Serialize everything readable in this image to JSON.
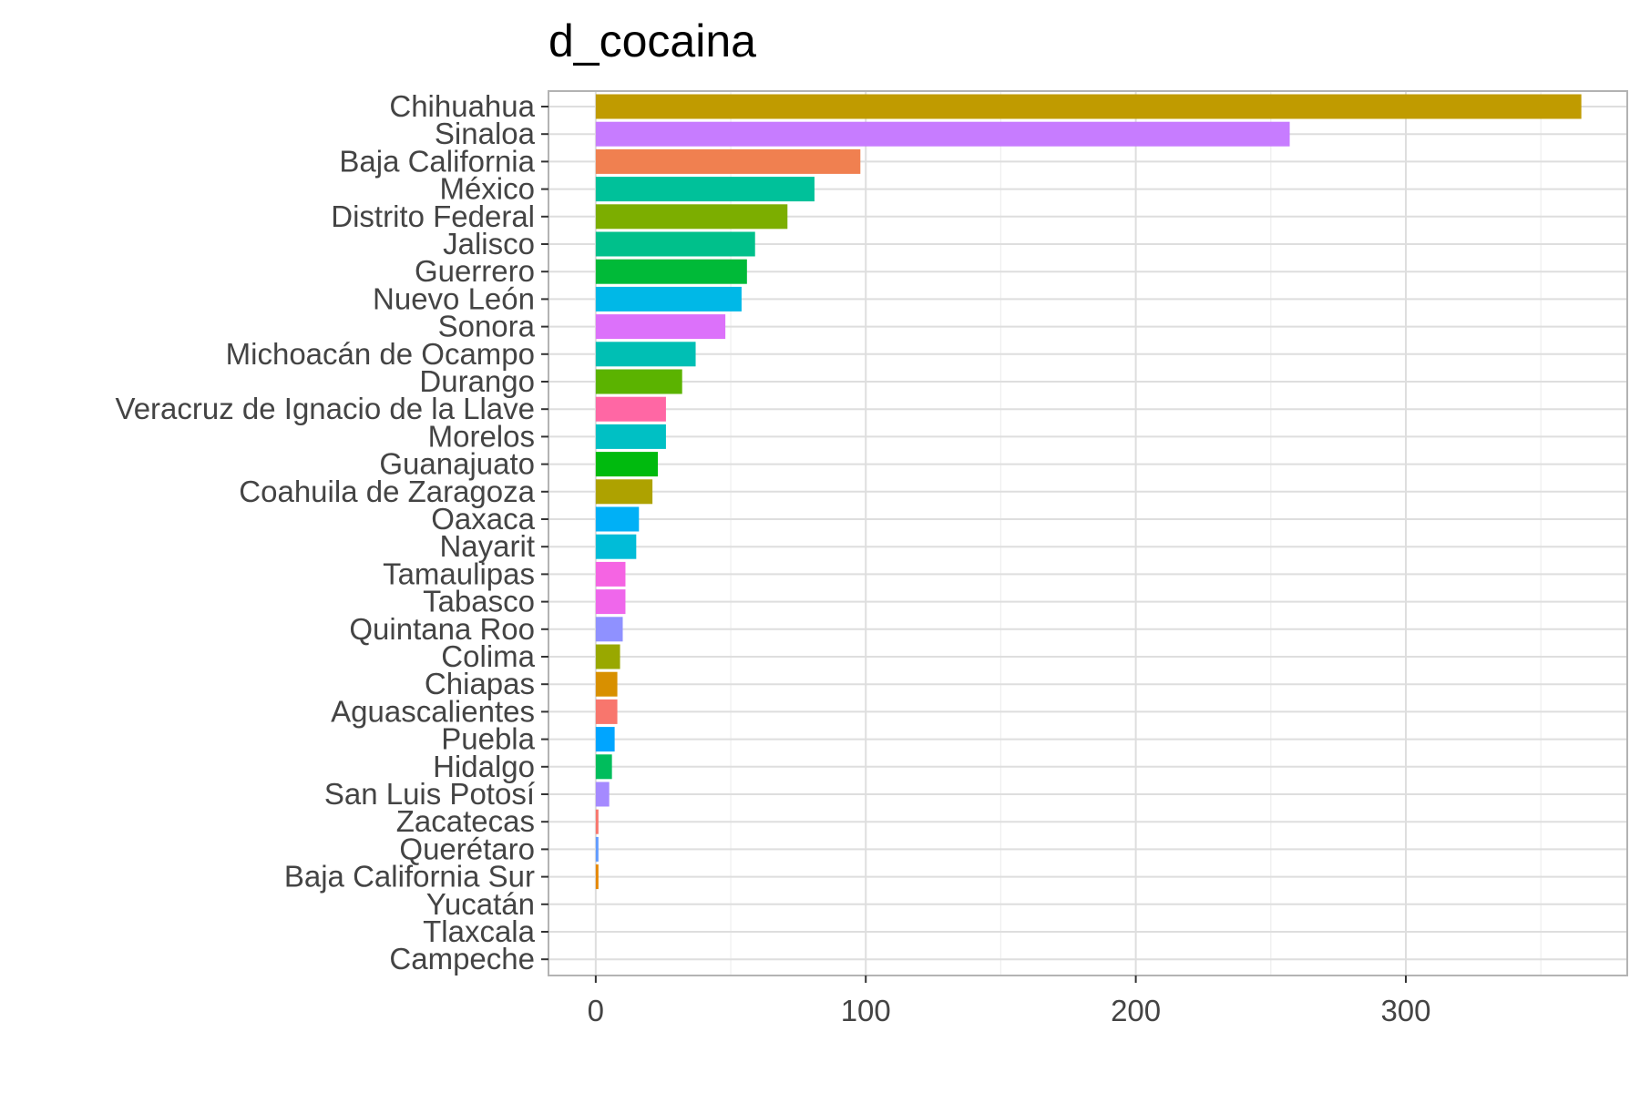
{
  "chart_data": {
    "type": "bar",
    "orientation": "horizontal",
    "title": "d_cocaina",
    "xlabel": "",
    "ylabel": "",
    "xlim": [
      -17.5,
      382
    ],
    "xticks": [
      0,
      100,
      200,
      300
    ],
    "grid": true,
    "legend": "none",
    "categories": [
      "Chihuahua",
      "Sinaloa",
      "Baja California",
      "México",
      "Distrito Federal",
      "Jalisco",
      "Guerrero",
      "Nuevo León",
      "Sonora",
      "Michoacán de Ocampo",
      "Durango",
      "Veracruz de Ignacio de la Llave",
      "Morelos",
      "Guanajuato",
      "Coahuila de Zaragoza",
      "Oaxaca",
      "Nayarit",
      "Tamaulipas",
      "Tabasco",
      "Quintana Roo",
      "Colima",
      "Chiapas",
      "Aguascalientes",
      "Puebla",
      "Hidalgo",
      "San Luis Potosí",
      "Zacatecas",
      "Querétaro",
      "Baja California Sur",
      "Yucatán",
      "Tlaxcala",
      "Campeche"
    ],
    "values": [
      365,
      257,
      98,
      81,
      71,
      59,
      56,
      54,
      48,
      37,
      32,
      26,
      26,
      23,
      21,
      16,
      15,
      11,
      11,
      10,
      9,
      8,
      8,
      7,
      6,
      5,
      1,
      1,
      1,
      0,
      0,
      0
    ],
    "colors": [
      "#C09B00",
      "#C77CFF",
      "#F08050",
      "#00C19A",
      "#7CAE00",
      "#00C08B",
      "#00BA38",
      "#00B8E7",
      "#DC71FA",
      "#00BFB4",
      "#5BB300",
      "#FF67A4",
      "#00C0C4",
      "#00BA0E",
      "#AEA200",
      "#00B0F6",
      "#00BCD8",
      "#F564E3",
      "#EF67EB",
      "#8F91FF",
      "#99A800",
      "#D89000",
      "#F8766D",
      "#00A5FF",
      "#00BD5C",
      "#A58AFF",
      "#F8766D",
      "#619CFF",
      "#E58700",
      "#F8766D",
      "#F8766D",
      "#F8766D"
    ]
  }
}
